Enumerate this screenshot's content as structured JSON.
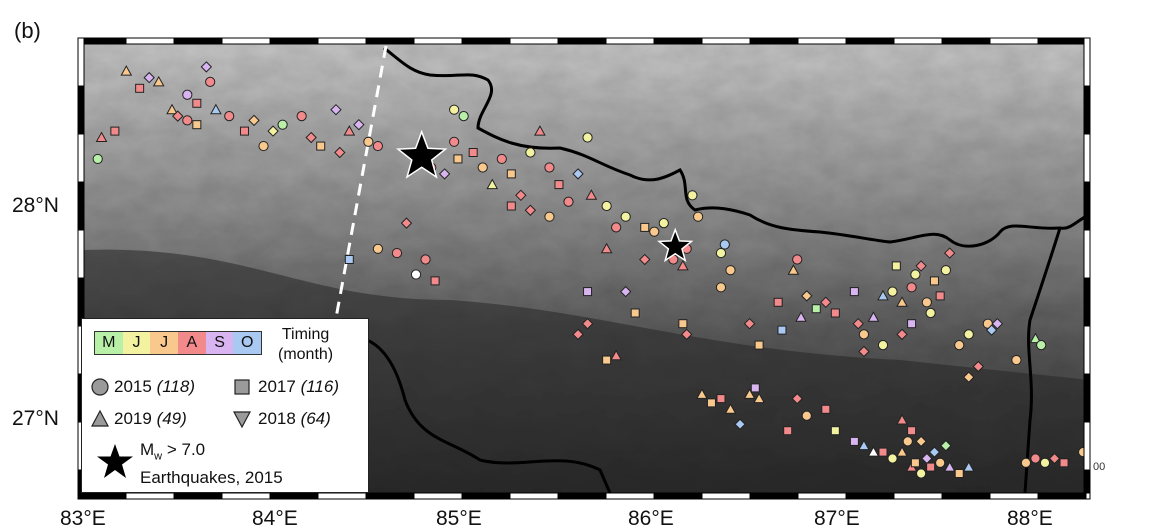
{
  "panel_label": "(b)",
  "latitude_labels": [
    "28°N",
    "27°N"
  ],
  "longitude_labels": [
    "83°E",
    "84°E",
    "85°E",
    "86°E",
    "87°E",
    "88°E"
  ],
  "legend": {
    "months": [
      "M",
      "J",
      "J",
      "A",
      "S",
      "O"
    ],
    "month_colors": [
      "#b8f0a8",
      "#f2f2a0",
      "#f8c88c",
      "#f28a8c",
      "#d8b4f0",
      "#a9c8f2"
    ],
    "timing_title_line1": "Timing",
    "timing_title_line2": "(month)",
    "years": [
      {
        "symbol": "circle",
        "year": "2015",
        "count": "(118)"
      },
      {
        "symbol": "square",
        "year": "2017",
        "count": "(116)"
      },
      {
        "symbol": "triangle-up",
        "year": "2019",
        "count": "(49)"
      },
      {
        "symbol": "triangle-down",
        "year": "2018",
        "count": "(64)"
      }
    ],
    "earthquake_label_m": "M",
    "earthquake_label_sub": "w",
    "earthquake_label_rest": " > 7.0",
    "earthquake_label_line2": "Earthquakes, 2015"
  },
  "scale_fragment": "00",
  "map": {
    "relief_colors": [
      "#2c2c2c",
      "#5a5a5a",
      "#8c8c8c",
      "#c6c6c6"
    ],
    "border_color": "#000000",
    "fault_line_color": "#ffffff",
    "earthquakes": [
      {
        "lon": 84.73,
        "lat": 28.23
      },
      {
        "lon": 86.06,
        "lat": 27.81
      }
    ],
    "landslides": [
      {
        "lon": 83.03,
        "lat": 28.22,
        "s": "circle",
        "c": 0
      },
      {
        "lon": 83.05,
        "lat": 28.32,
        "s": "tri",
        "c": 3
      },
      {
        "lon": 83.12,
        "lat": 28.35,
        "s": "square",
        "c": 3
      },
      {
        "lon": 83.18,
        "lat": 28.63,
        "s": "tri",
        "c": 2
      },
      {
        "lon": 83.25,
        "lat": 28.55,
        "s": "square",
        "c": 3
      },
      {
        "lon": 83.3,
        "lat": 28.6,
        "s": "diamond",
        "c": 4
      },
      {
        "lon": 83.35,
        "lat": 28.58,
        "s": "tri",
        "c": 2
      },
      {
        "lon": 83.42,
        "lat": 28.45,
        "s": "tri",
        "c": 2
      },
      {
        "lon": 83.45,
        "lat": 28.42,
        "s": "diamond",
        "c": 3
      },
      {
        "lon": 83.5,
        "lat": 28.52,
        "s": "circle",
        "c": 4
      },
      {
        "lon": 83.55,
        "lat": 28.48,
        "s": "square",
        "c": 3
      },
      {
        "lon": 83.6,
        "lat": 28.65,
        "s": "diamond",
        "c": 4
      },
      {
        "lon": 83.62,
        "lat": 28.58,
        "s": "circle",
        "c": 3
      },
      {
        "lon": 83.65,
        "lat": 28.45,
        "s": "tri",
        "c": 5
      },
      {
        "lon": 83.5,
        "lat": 28.4,
        "s": "circle",
        "c": 3
      },
      {
        "lon": 83.55,
        "lat": 28.38,
        "s": "square",
        "c": 2
      },
      {
        "lon": 83.72,
        "lat": 28.42,
        "s": "circle",
        "c": 3
      },
      {
        "lon": 83.8,
        "lat": 28.35,
        "s": "square",
        "c": 3
      },
      {
        "lon": 83.85,
        "lat": 28.4,
        "s": "diamond",
        "c": 2
      },
      {
        "lon": 83.9,
        "lat": 28.28,
        "s": "circle",
        "c": 2
      },
      {
        "lon": 83.95,
        "lat": 28.35,
        "s": "diamond",
        "c": 1
      },
      {
        "lon": 84.0,
        "lat": 28.38,
        "s": "circle",
        "c": 0
      },
      {
        "lon": 84.1,
        "lat": 28.42,
        "s": "circle",
        "c": 3
      },
      {
        "lon": 84.15,
        "lat": 28.32,
        "s": "diamond",
        "c": 3
      },
      {
        "lon": 84.2,
        "lat": 28.28,
        "s": "square",
        "c": 2
      },
      {
        "lon": 84.28,
        "lat": 28.45,
        "s": "diamond",
        "c": 4
      },
      {
        "lon": 84.35,
        "lat": 28.35,
        "s": "tri",
        "c": 3
      },
      {
        "lon": 84.3,
        "lat": 28.25,
        "s": "diamond",
        "c": 3
      },
      {
        "lon": 84.4,
        "lat": 28.38,
        "s": "diamond",
        "c": 4
      },
      {
        "lon": 84.45,
        "lat": 28.3,
        "s": "circle",
        "c": 2
      },
      {
        "lon": 84.5,
        "lat": 28.28,
        "s": "circle",
        "c": 3
      },
      {
        "lon": 84.72,
        "lat": 28.23,
        "s": "diamond",
        "c": 3
      },
      {
        "lon": 84.78,
        "lat": 28.18,
        "s": "circle",
        "c": 3
      },
      {
        "lon": 84.85,
        "lat": 28.15,
        "s": "diamond",
        "c": 4
      },
      {
        "lon": 84.9,
        "lat": 28.3,
        "s": "circle",
        "c": 3
      },
      {
        "lon": 84.92,
        "lat": 28.22,
        "s": "square",
        "c": 2
      },
      {
        "lon": 84.9,
        "lat": 28.45,
        "s": "circle",
        "c": 1
      },
      {
        "lon": 84.95,
        "lat": 28.42,
        "s": "circle",
        "c": 0
      },
      {
        "lon": 85.0,
        "lat": 28.25,
        "s": "square",
        "c": 3
      },
      {
        "lon": 85.05,
        "lat": 28.18,
        "s": "circle",
        "c": 2
      },
      {
        "lon": 85.1,
        "lat": 28.1,
        "s": "tri",
        "c": 1
      },
      {
        "lon": 85.15,
        "lat": 28.22,
        "s": "circle",
        "c": 3
      },
      {
        "lon": 85.2,
        "lat": 28.15,
        "s": "square",
        "c": 2
      },
      {
        "lon": 85.25,
        "lat": 28.05,
        "s": "diamond",
        "c": 3
      },
      {
        "lon": 85.3,
        "lat": 28.25,
        "s": "circle",
        "c": 1
      },
      {
        "lon": 85.35,
        "lat": 28.35,
        "s": "tri",
        "c": 3
      },
      {
        "lon": 85.4,
        "lat": 28.18,
        "s": "circle",
        "c": 3
      },
      {
        "lon": 85.45,
        "lat": 28.1,
        "s": "square",
        "c": 3
      },
      {
        "lon": 85.5,
        "lat": 28.02,
        "s": "circle",
        "c": 3
      },
      {
        "lon": 85.55,
        "lat": 28.15,
        "s": "diamond",
        "c": 5
      },
      {
        "lon": 85.6,
        "lat": 28.32,
        "s": "circle",
        "c": 1
      },
      {
        "lon": 85.62,
        "lat": 28.05,
        "s": "tri",
        "c": 3
      },
      {
        "lon": 85.7,
        "lat": 28.0,
        "s": "circle",
        "c": 1
      },
      {
        "lon": 85.75,
        "lat": 27.9,
        "s": "circle",
        "c": 3
      },
      {
        "lon": 85.8,
        "lat": 27.95,
        "s": "circle",
        "c": 1
      },
      {
        "lon": 85.3,
        "lat": 27.98,
        "s": "diamond",
        "c": 3
      },
      {
        "lon": 85.4,
        "lat": 27.95,
        "s": "circle",
        "c": 2
      },
      {
        "lon": 85.2,
        "lat": 28.0,
        "s": "square",
        "c": 3
      },
      {
        "lon": 84.35,
        "lat": 27.75,
        "s": "square",
        "c": 5
      },
      {
        "lon": 84.5,
        "lat": 27.8,
        "s": "circle",
        "c": 2
      },
      {
        "lon": 84.6,
        "lat": 27.78,
        "s": "circle",
        "c": 3
      },
      {
        "lon": 84.75,
        "lat": 27.75,
        "s": "circle",
        "c": 3
      },
      {
        "lon": 84.65,
        "lat": 27.92,
        "s": "diamond",
        "c": 3
      },
      {
        "lon": 84.7,
        "lat": 27.68,
        "s": "circle",
        "c": 6
      },
      {
        "lon": 84.8,
        "lat": 27.65,
        "s": "square",
        "c": 3
      },
      {
        "lon": 85.9,
        "lat": 27.9,
        "s": "square",
        "c": 2
      },
      {
        "lon": 85.95,
        "lat": 27.88,
        "s": "circle",
        "c": 2
      },
      {
        "lon": 86.0,
        "lat": 27.92,
        "s": "circle",
        "c": 1
      },
      {
        "lon": 86.05,
        "lat": 27.75,
        "s": "circle",
        "c": 3
      },
      {
        "lon": 86.1,
        "lat": 27.72,
        "s": "tri",
        "c": 3
      },
      {
        "lon": 86.12,
        "lat": 27.8,
        "s": "circle",
        "c": 3
      },
      {
        "lon": 86.15,
        "lat": 28.05,
        "s": "circle",
        "c": 1
      },
      {
        "lon": 86.18,
        "lat": 27.95,
        "s": "circle",
        "c": 2
      },
      {
        "lon": 85.8,
        "lat": 27.6,
        "s": "diamond",
        "c": 4
      },
      {
        "lon": 85.85,
        "lat": 27.5,
        "s": "square",
        "c": 2
      },
      {
        "lon": 85.9,
        "lat": 27.75,
        "s": "diamond",
        "c": 3
      },
      {
        "lon": 85.7,
        "lat": 27.8,
        "s": "tri",
        "c": 3
      },
      {
        "lon": 85.6,
        "lat": 27.6,
        "s": "square",
        "c": 4
      },
      {
        "lon": 85.6,
        "lat": 27.45,
        "s": "diamond",
        "c": 3
      },
      {
        "lon": 85.55,
        "lat": 27.4,
        "s": "diamond",
        "c": 3
      },
      {
        "lon": 85.75,
        "lat": 27.3,
        "s": "tri",
        "c": 3
      },
      {
        "lon": 85.7,
        "lat": 27.28,
        "s": "square",
        "c": 2
      },
      {
        "lon": 86.1,
        "lat": 27.45,
        "s": "square",
        "c": 2
      },
      {
        "lon": 86.12,
        "lat": 27.4,
        "s": "diamond",
        "c": 3
      },
      {
        "lon": 86.3,
        "lat": 27.78,
        "s": "circle",
        "c": 1
      },
      {
        "lon": 86.32,
        "lat": 27.82,
        "s": "circle",
        "c": 5
      },
      {
        "lon": 86.35,
        "lat": 27.7,
        "s": "circle",
        "c": 2
      },
      {
        "lon": 86.3,
        "lat": 27.62,
        "s": "circle",
        "c": 2
      },
      {
        "lon": 86.5,
        "lat": 27.35,
        "s": "square",
        "c": 2
      },
      {
        "lon": 86.45,
        "lat": 27.45,
        "s": "diamond",
        "c": 3
      },
      {
        "lon": 86.6,
        "lat": 27.55,
        "s": "square",
        "c": 3
      },
      {
        "lon": 86.62,
        "lat": 27.42,
        "s": "square",
        "c": 5
      },
      {
        "lon": 86.7,
        "lat": 27.75,
        "s": "circle",
        "c": 3
      },
      {
        "lon": 86.68,
        "lat": 27.7,
        "s": "tri",
        "c": 2
      },
      {
        "lon": 86.72,
        "lat": 27.48,
        "s": "tri",
        "c": 4
      },
      {
        "lon": 86.75,
        "lat": 27.58,
        "s": "diamond",
        "c": 2
      },
      {
        "lon": 86.8,
        "lat": 27.52,
        "s": "square",
        "c": 0
      },
      {
        "lon": 86.85,
        "lat": 27.55,
        "s": "diamond",
        "c": 3
      },
      {
        "lon": 86.9,
        "lat": 27.5,
        "s": "square",
        "c": 3
      },
      {
        "lon": 87.0,
        "lat": 27.6,
        "s": "square",
        "c": 4
      },
      {
        "lon": 87.02,
        "lat": 27.45,
        "s": "diamond",
        "c": 3
      },
      {
        "lon": 87.05,
        "lat": 27.4,
        "s": "circle",
        "c": 2
      },
      {
        "lon": 87.1,
        "lat": 27.48,
        "s": "tri",
        "c": 4
      },
      {
        "lon": 87.15,
        "lat": 27.58,
        "s": "tri",
        "c": 5
      },
      {
        "lon": 87.2,
        "lat": 27.6,
        "s": "circle",
        "c": 1
      },
      {
        "lon": 87.22,
        "lat": 27.72,
        "s": "square",
        "c": 1
      },
      {
        "lon": 87.25,
        "lat": 27.55,
        "s": "tri",
        "c": 2
      },
      {
        "lon": 87.3,
        "lat": 27.62,
        "s": "circle",
        "c": 3
      },
      {
        "lon": 87.32,
        "lat": 27.68,
        "s": "circle",
        "c": 1
      },
      {
        "lon": 87.35,
        "lat": 27.72,
        "s": "diamond",
        "c": 3
      },
      {
        "lon": 87.38,
        "lat": 27.55,
        "s": "circle",
        "c": 2
      },
      {
        "lon": 87.4,
        "lat": 27.5,
        "s": "circle",
        "c": 1
      },
      {
        "lon": 87.42,
        "lat": 27.65,
        "s": "square",
        "c": 2
      },
      {
        "lon": 87.45,
        "lat": 27.58,
        "s": "square",
        "c": 3
      },
      {
        "lon": 87.48,
        "lat": 27.7,
        "s": "circle",
        "c": 1
      },
      {
        "lon": 87.5,
        "lat": 27.78,
        "s": "diamond",
        "c": 3
      },
      {
        "lon": 87.3,
        "lat": 27.45,
        "s": "square",
        "c": 4
      },
      {
        "lon": 87.25,
        "lat": 27.4,
        "s": "diamond",
        "c": 3
      },
      {
        "lon": 87.15,
        "lat": 27.35,
        "s": "circle",
        "c": 1
      },
      {
        "lon": 87.05,
        "lat": 27.32,
        "s": "diamond",
        "c": 3
      },
      {
        "lon": 87.6,
        "lat": 27.4,
        "s": "circle",
        "c": 1
      },
      {
        "lon": 87.55,
        "lat": 27.35,
        "s": "circle",
        "c": 2
      },
      {
        "lon": 87.7,
        "lat": 27.45,
        "s": "circle",
        "c": 2
      },
      {
        "lon": 87.72,
        "lat": 27.42,
        "s": "diamond",
        "c": 5
      },
      {
        "lon": 87.75,
        "lat": 27.45,
        "s": "diamond",
        "c": 4
      },
      {
        "lon": 87.85,
        "lat": 27.28,
        "s": "circle",
        "c": 2
      },
      {
        "lon": 87.95,
        "lat": 27.38,
        "s": "tri",
        "c": 0
      },
      {
        "lon": 87.98,
        "lat": 27.35,
        "s": "circle",
        "c": 0
      },
      {
        "lon": 87.65,
        "lat": 27.25,
        "s": "diamond",
        "c": 3
      },
      {
        "lon": 87.6,
        "lat": 27.2,
        "s": "diamond",
        "c": 2
      },
      {
        "lon": 86.35,
        "lat": 27.05,
        "s": "tri",
        "c": 2
      },
      {
        "lon": 86.2,
        "lat": 27.12,
        "s": "tri",
        "c": 2
      },
      {
        "lon": 86.25,
        "lat": 27.08,
        "s": "square",
        "c": 2
      },
      {
        "lon": 86.3,
        "lat": 27.1,
        "s": "square",
        "c": 3
      },
      {
        "lon": 86.45,
        "lat": 27.12,
        "s": "tri",
        "c": 2
      },
      {
        "lon": 86.5,
        "lat": 27.1,
        "s": "tri",
        "c": 2
      },
      {
        "lon": 86.48,
        "lat": 27.15,
        "s": "square",
        "c": 4
      },
      {
        "lon": 86.4,
        "lat": 26.98,
        "s": "diamond",
        "c": 5
      },
      {
        "lon": 86.7,
        "lat": 27.1,
        "s": "diamond",
        "c": 3
      },
      {
        "lon": 86.75,
        "lat": 27.02,
        "s": "circle",
        "c": 2
      },
      {
        "lon": 86.65,
        "lat": 26.95,
        "s": "square",
        "c": 3
      },
      {
        "lon": 86.85,
        "lat": 27.05,
        "s": "square",
        "c": 3
      },
      {
        "lon": 86.9,
        "lat": 26.95,
        "s": "square",
        "c": 1
      },
      {
        "lon": 87.0,
        "lat": 26.9,
        "s": "square",
        "c": 4
      },
      {
        "lon": 87.05,
        "lat": 26.88,
        "s": "tri",
        "c": 5
      },
      {
        "lon": 87.1,
        "lat": 26.85,
        "s": "tri",
        "c": 6
      },
      {
        "lon": 87.15,
        "lat": 26.85,
        "s": "square",
        "c": 3
      },
      {
        "lon": 87.2,
        "lat": 26.82,
        "s": "circle",
        "c": 1
      },
      {
        "lon": 87.25,
        "lat": 26.85,
        "s": "tri",
        "c": 2
      },
      {
        "lon": 87.28,
        "lat": 26.9,
        "s": "circle",
        "c": 2
      },
      {
        "lon": 87.3,
        "lat": 26.78,
        "s": "tri",
        "c": 3
      },
      {
        "lon": 87.32,
        "lat": 26.8,
        "s": "square",
        "c": 2
      },
      {
        "lon": 87.35,
        "lat": 26.75,
        "s": "circle",
        "c": 1
      },
      {
        "lon": 87.38,
        "lat": 26.82,
        "s": "diamond",
        "c": 4
      },
      {
        "lon": 87.4,
        "lat": 26.78,
        "s": "square",
        "c": 3
      },
      {
        "lon": 87.42,
        "lat": 26.85,
        "s": "diamond",
        "c": 5
      },
      {
        "lon": 87.45,
        "lat": 26.8,
        "s": "circle",
        "c": 2
      },
      {
        "lon": 87.48,
        "lat": 26.88,
        "s": "diamond",
        "c": 0
      },
      {
        "lon": 87.5,
        "lat": 26.78,
        "s": "tri",
        "c": 4
      },
      {
        "lon": 87.3,
        "lat": 26.95,
        "s": "square",
        "c": 3
      },
      {
        "lon": 87.25,
        "lat": 27.0,
        "s": "tri",
        "c": 3
      },
      {
        "lon": 87.35,
        "lat": 26.9,
        "s": "diamond",
        "c": 2
      },
      {
        "lon": 87.55,
        "lat": 26.75,
        "s": "square",
        "c": 2
      },
      {
        "lon": 87.6,
        "lat": 26.78,
        "s": "tri",
        "c": 5
      },
      {
        "lon": 87.9,
        "lat": 26.8,
        "s": "circle",
        "c": 2
      },
      {
        "lon": 87.95,
        "lat": 26.82,
        "s": "circle",
        "c": 3
      },
      {
        "lon": 88.0,
        "lat": 26.8,
        "s": "circle",
        "c": 1
      },
      {
        "lon": 88.05,
        "lat": 26.82,
        "s": "diamond",
        "c": 3
      },
      {
        "lon": 88.1,
        "lat": 26.8,
        "s": "square",
        "c": 3
      },
      {
        "lon": 88.2,
        "lat": 26.85,
        "s": "circle",
        "c": 2
      }
    ]
  }
}
